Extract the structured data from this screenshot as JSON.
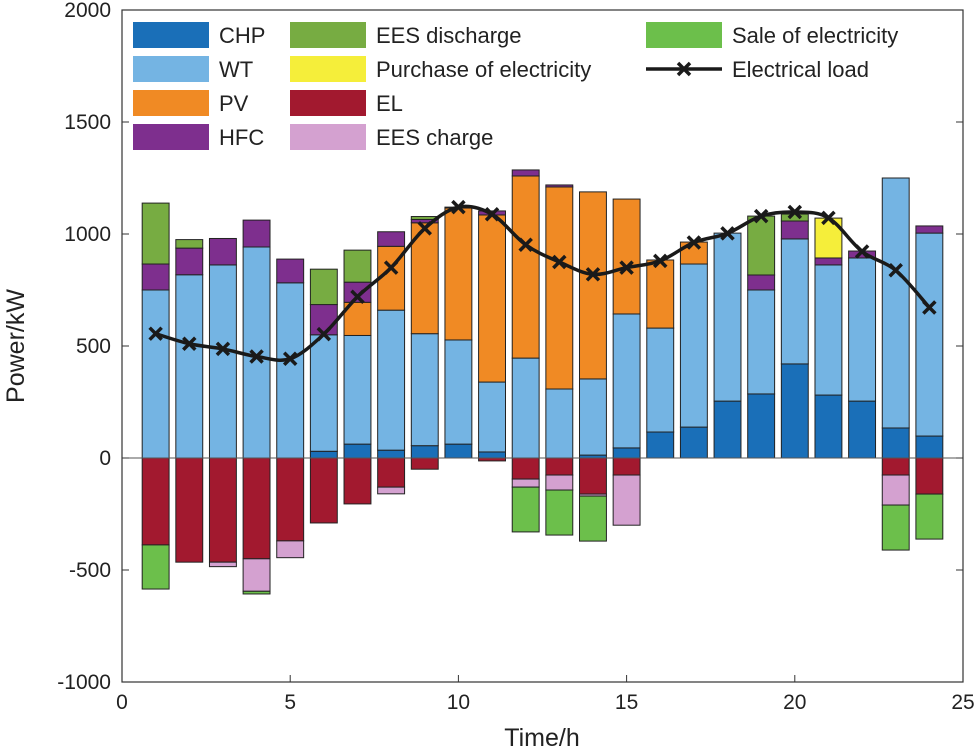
{
  "chart_data": {
    "type": "bar",
    "stacked": true,
    "xlabel": "Time/h",
    "ylabel": "Power/kW",
    "xlim": [
      0,
      25
    ],
    "ylim": [
      -1000,
      2000
    ],
    "xticks": [
      "0",
      "5",
      "10",
      "15",
      "20",
      "25"
    ],
    "yticks": [
      "-1000",
      "-500",
      "0",
      "500",
      "1000",
      "1500",
      "2000"
    ],
    "legend_position": "top",
    "grid": false,
    "x": [
      1,
      2,
      3,
      4,
      5,
      6,
      7,
      8,
      9,
      10,
      11,
      12,
      13,
      14,
      15,
      16,
      17,
      18,
      19,
      20,
      21,
      22,
      23,
      24
    ],
    "series": [
      {
        "name": "CHP",
        "color": "#1a6fb8",
        "sign": 1,
        "values": [
          0,
          0,
          0,
          0,
          0,
          30,
          62,
          35,
          55,
          62,
          27,
          0,
          0,
          13,
          45,
          116,
          138,
          254,
          286,
          420,
          281,
          254,
          134,
          98
        ]
      },
      {
        "name": "WT",
        "color": "#74b4e3",
        "sign": 1,
        "values": [
          750,
          818,
          862,
          942,
          782,
          520,
          485,
          625,
          500,
          465,
          312,
          446,
          308,
          340,
          598,
          464,
          728,
          750,
          464,
          558,
          581,
          639,
          1116,
          906
        ]
      },
      {
        "name": "PV",
        "color": "#f08a24",
        "sign": 1,
        "values": [
          0,
          0,
          0,
          0,
          0,
          0,
          148,
          285,
          495,
          589,
          746,
          813,
          902,
          835,
          513,
          304,
          98,
          0,
          0,
          0,
          0,
          0,
          0,
          0
        ]
      },
      {
        "name": "HFC",
        "color": "#7e2f8e",
        "sign": 1,
        "values": [
          116,
          119,
          118,
          120,
          106,
          135,
          90,
          65,
          15,
          4,
          18,
          27,
          9,
          0,
          0,
          0,
          0,
          0,
          67,
          80,
          31,
          31,
          0,
          32
        ]
      },
      {
        "name": "EES discharge",
        "color": "#77ac42",
        "sign": 1,
        "values": [
          272,
          38,
          0,
          0,
          0,
          158,
          143,
          0,
          13,
          0,
          0,
          0,
          0,
          0,
          0,
          0,
          0,
          0,
          263,
          31,
          0,
          0,
          0,
          0
        ]
      },
      {
        "name": "Purchase of electricity",
        "color": "#f5ee3a",
        "sign": 1,
        "values": [
          0,
          0,
          0,
          0,
          0,
          0,
          0,
          0,
          0,
          0,
          0,
          0,
          0,
          0,
          0,
          0,
          0,
          0,
          0,
          0,
          178,
          0,
          0,
          0
        ]
      },
      {
        "name": "EL",
        "color": "#a2192f",
        "sign": -1,
        "values": [
          388,
          465,
          465,
          450,
          370,
          290,
          205,
          130,
          50,
          0,
          13,
          94,
          76,
          161,
          76,
          0,
          0,
          0,
          0,
          0,
          0,
          0,
          76,
          161
        ]
      },
      {
        "name": "EES charge",
        "color": "#d4a1d0",
        "sign": -1,
        "values": [
          0,
          0,
          20,
          145,
          75,
          0,
          0,
          30,
          0,
          0,
          0,
          36,
          67,
          9,
          224,
          0,
          0,
          0,
          0,
          0,
          0,
          0,
          134,
          0
        ]
      },
      {
        "name": "Sale of electricity",
        "color": "#6cbf4b",
        "sign": -1,
        "values": [
          197,
          0,
          0,
          12,
          0,
          0,
          0,
          0,
          0,
          0,
          0,
          200,
          201,
          201,
          0,
          0,
          0,
          0,
          0,
          0,
          0,
          0,
          201,
          201
        ]
      }
    ],
    "line": {
      "name": "Electrical load",
      "color": "#1a1a1a",
      "marker": "x",
      "values": [
        555,
        510,
        487,
        453,
        443,
        553,
        720,
        850,
        1025,
        1120,
        1088,
        952,
        875,
        820,
        850,
        880,
        962,
        1003,
        1080,
        1098,
        1072,
        922,
        838,
        672
      ]
    }
  }
}
